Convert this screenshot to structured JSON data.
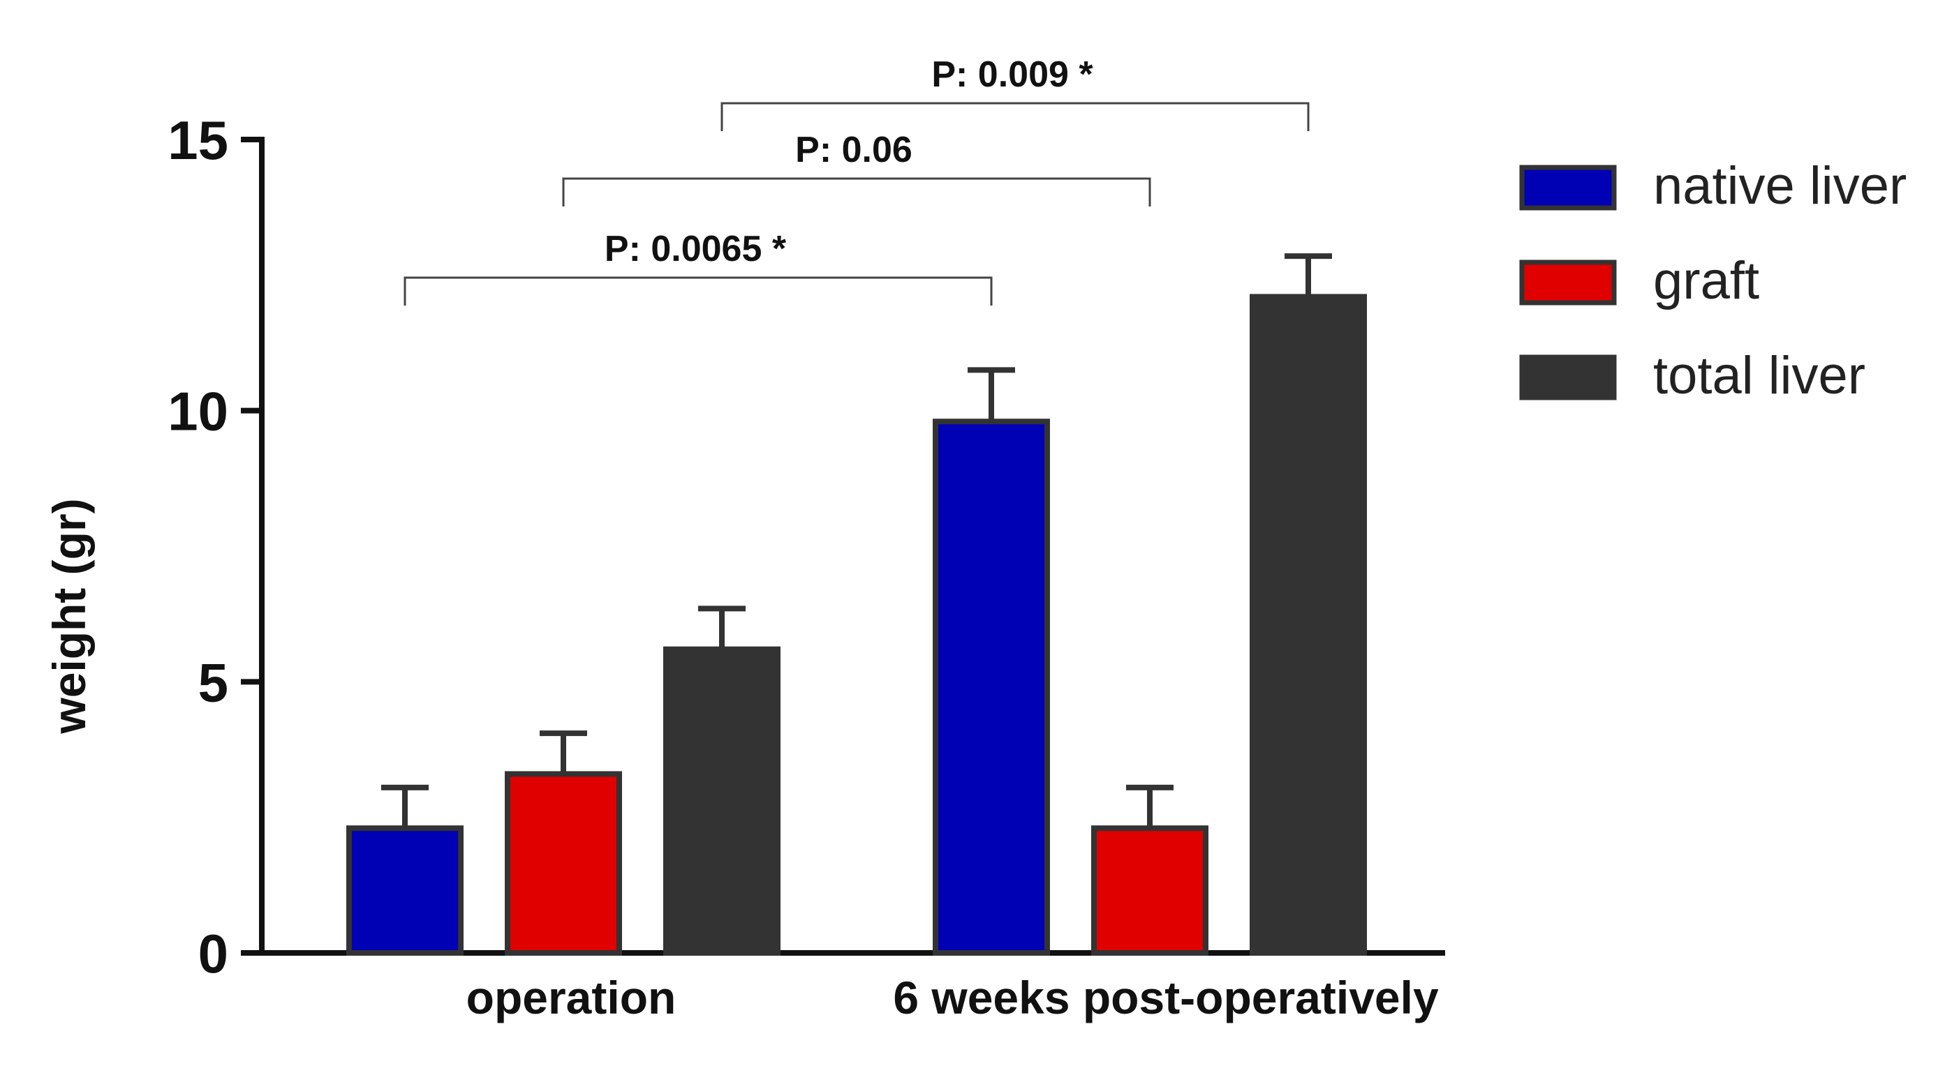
{
  "chart_data": {
    "type": "bar",
    "title": "",
    "xlabel": "",
    "ylabel": "weight (gr)",
    "ylim": [
      0,
      15
    ],
    "yticks": [
      "0",
      "5",
      "10",
      "15"
    ],
    "grid": false,
    "legend_position": "right",
    "categories": [
      "operation",
      "6 weeks post-operatively"
    ],
    "series": [
      {
        "name": "native liver",
        "color": "#0000b4",
        "values": [
          2.3,
          9.8
        ],
        "errors": [
          0.75,
          0.95
        ]
      },
      {
        "name": "graft",
        "color": "#e10000",
        "values": [
          3.3,
          2.3
        ],
        "errors": [
          0.75,
          0.75
        ]
      },
      {
        "name": "total liver",
        "color": "#333333",
        "values": [
          5.6,
          12.1
        ],
        "errors": [
          0.75,
          0.75
        ]
      }
    ],
    "annotations": [
      {
        "text": "P: 0.0065 *",
        "from": {
          "category": 0,
          "series": 0
        },
        "to": {
          "category": 1,
          "series": 0
        }
      },
      {
        "text": "P: 0.06",
        "from": {
          "category": 0,
          "series": 1
        },
        "to": {
          "category": 1,
          "series": 1
        }
      },
      {
        "text": "P: 0.009 *",
        "from": {
          "category": 0,
          "series": 2
        },
        "to": {
          "category": 1,
          "series": 2
        }
      }
    ]
  }
}
